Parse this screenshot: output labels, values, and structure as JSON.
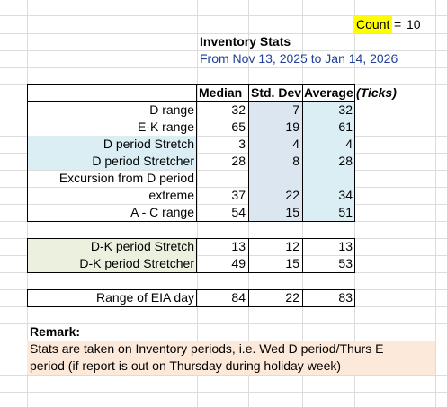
{
  "count": {
    "label": "Count",
    "equals": "=",
    "value": "10"
  },
  "header": {
    "title": "Inventory Stats",
    "date_range": "From Nov 13, 2025 to Jan 14, 2026"
  },
  "table": {
    "columns": [
      "Median",
      "Std. Dev",
      "Average",
      "(Ticks)"
    ],
    "group1": [
      {
        "label": "D range",
        "median": "32",
        "std": "7",
        "avg": "32"
      },
      {
        "label": "E-K range",
        "median": "65",
        "std": "19",
        "avg": "61"
      },
      {
        "label": "D period Stretch",
        "median": "3",
        "std": "4",
        "avg": "4"
      },
      {
        "label": "D period Stretcher",
        "median": "28",
        "std": "8",
        "avg": "28"
      },
      {
        "label_line1": "Excursion from D period",
        "label": "extreme",
        "median": "37",
        "std": "22",
        "avg": "34"
      },
      {
        "label": "A - C range",
        "median": "54",
        "std": "15",
        "avg": "51"
      }
    ],
    "group2": [
      {
        "label": "D-K period Stretch",
        "median": "13",
        "std": "12",
        "avg": "13"
      },
      {
        "label": "D-K period Stretcher",
        "median": "49",
        "std": "15",
        "avg": "53"
      }
    ],
    "group3": [
      {
        "label": "Range of EIA day",
        "median": "84",
        "std": "22",
        "avg": "83"
      }
    ]
  },
  "remark": {
    "title": "Remark:",
    "line1": "Stats are taken on Inventory periods, i.e. Wed D period/Thurs E",
    "line2": "period (if report is out on Thursday during holiday week)"
  },
  "colors": {
    "count_highlight": "#ffff00",
    "blue_fill": "#daeef3",
    "std_fill": "#dce6f1",
    "green_fill": "#ebf1de",
    "remark_fill": "#fde9d9",
    "date_text": "#1f3f99"
  }
}
